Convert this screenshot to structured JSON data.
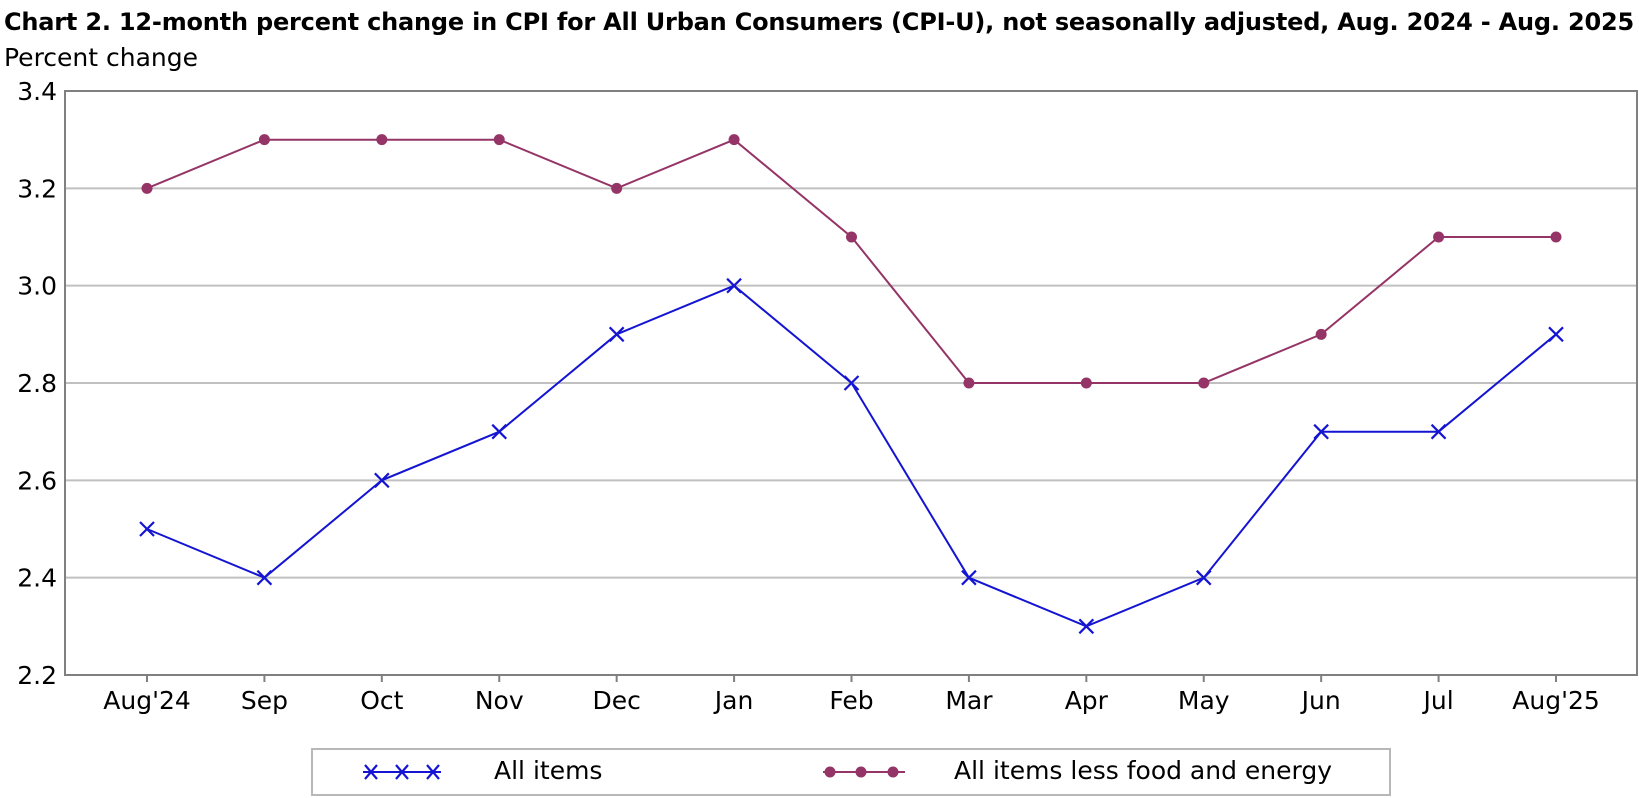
{
  "chart_data": {
    "type": "line",
    "title": "Chart 2. 12-month percent change in CPI for All Urban Consumers (CPI-U), not seasonally adjusted, Aug. 2024 - Aug. 2025",
    "ylabel": "Percent change",
    "xlabel": "",
    "categories": [
      "Aug'24",
      "Sep",
      "Oct",
      "Nov",
      "Dec",
      "Jan",
      "Feb",
      "Mar",
      "Apr",
      "May",
      "Jun",
      "Jul",
      "Aug'25"
    ],
    "ylim": [
      2.2,
      3.4
    ],
    "yticks": [
      "2.2",
      "2.4",
      "2.6",
      "2.8",
      "3.0",
      "3.2",
      "3.4"
    ],
    "grid": "horizontal",
    "legend_position": "bottom",
    "series": [
      {
        "name": "All items",
        "marker": "x",
        "color": "#1414d2",
        "values": [
          2.5,
          2.4,
          2.6,
          2.7,
          2.9,
          3.0,
          2.8,
          2.4,
          2.3,
          2.4,
          2.7,
          2.7,
          2.9
        ]
      },
      {
        "name": "All items less food and energy",
        "marker": "circle",
        "color": "#953567",
        "values": [
          3.2,
          3.3,
          3.3,
          3.3,
          3.2,
          3.3,
          3.1,
          2.8,
          2.8,
          2.8,
          2.9,
          3.1,
          3.1
        ]
      }
    ]
  }
}
